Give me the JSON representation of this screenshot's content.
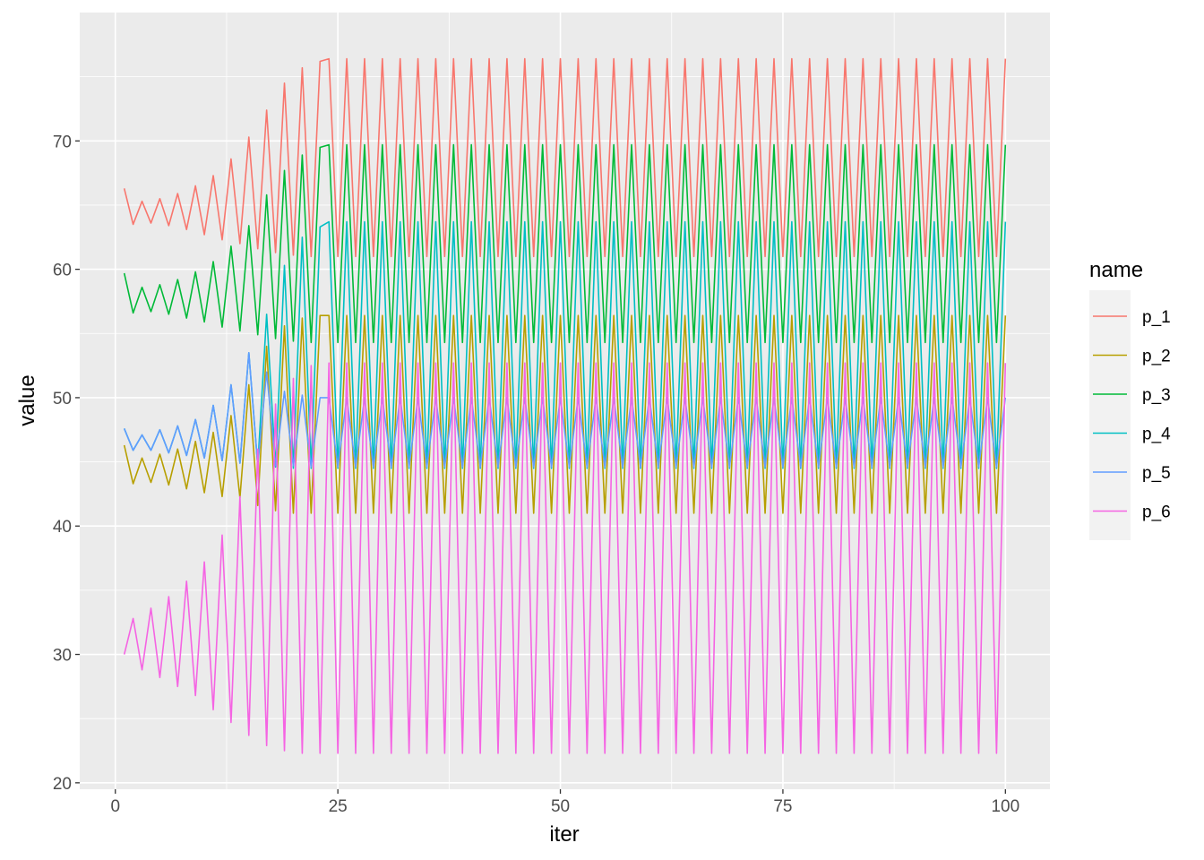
{
  "chart_data": {
    "type": "line",
    "xlabel": "iter",
    "ylabel": "value",
    "xlim": [
      -4,
      105
    ],
    "ylim": [
      19.5,
      80
    ],
    "x_ticks": [
      0,
      25,
      50,
      75,
      100
    ],
    "y_ticks": [
      20,
      30,
      40,
      50,
      60,
      70
    ],
    "grid": true,
    "legend": {
      "title": "name",
      "position": "right"
    },
    "x": {
      "start": 1,
      "end": 100,
      "step": 1
    },
    "series": [
      {
        "name": "p_1",
        "color": "#F8766D",
        "start": [
          66.3,
          63.5,
          65.3,
          63.6,
          65.5,
          63.4,
          65.9,
          63.1,
          66.5,
          62.7,
          67.3,
          62.3,
          68.6,
          62.0,
          70.3,
          61.6,
          72.4,
          61.3,
          74.5,
          61.1,
          75.7,
          61.0,
          76.2
        ],
        "steady": [
          76.4,
          61.0
        ]
      },
      {
        "name": "p_2",
        "color": "#B79F00",
        "start": [
          46.3,
          43.3,
          45.3,
          43.4,
          45.6,
          43.2,
          46.0,
          42.9,
          46.6,
          42.6,
          47.3,
          42.3,
          48.6,
          42.2,
          51.0,
          41.6,
          54.0,
          41.2,
          55.6,
          41.0,
          56.2,
          41.0,
          56.4
        ],
        "steady": [
          56.4,
          41.0
        ]
      },
      {
        "name": "p_3",
        "color": "#00BA38",
        "start": [
          59.7,
          56.6,
          58.6,
          56.7,
          58.8,
          56.5,
          59.2,
          56.2,
          59.8,
          55.9,
          60.6,
          55.5,
          61.8,
          55.2,
          63.4,
          54.9,
          65.8,
          54.6,
          67.7,
          54.4,
          68.9,
          54.3,
          69.5
        ],
        "steady": [
          69.7,
          54.3
        ]
      },
      {
        "name": "p_4",
        "color": "#00BFC4",
        "start": [
          47.6,
          45.9,
          47.1,
          45.9,
          47.5,
          45.7,
          47.8,
          45.5,
          48.3,
          45.3,
          49.4,
          45.1,
          51.0,
          44.9,
          53.5,
          44.7,
          56.5,
          44.6,
          60.3,
          44.5,
          62.5,
          44.5,
          63.3
        ],
        "steady": [
          63.7,
          44.5
        ]
      },
      {
        "name": "p_5",
        "color": "#619CFF",
        "start": [
          47.6,
          45.9,
          47.1,
          45.9,
          47.5,
          45.7,
          47.8,
          45.5,
          48.3,
          45.3,
          49.4,
          45.1,
          51.0,
          44.9,
          53.5,
          44.7,
          52.0,
          44.7,
          50.5,
          44.7,
          50.2,
          44.6,
          50.0
        ],
        "steady": [
          50.0,
          44.6
        ]
      },
      {
        "name": "p_6",
        "color": "#F564E3",
        "start": [
          30.0,
          32.8,
          28.8,
          33.6,
          28.2,
          34.5,
          27.5,
          35.7,
          26.8,
          37.2,
          25.7,
          39.3,
          24.7,
          42.3,
          23.7,
          46.0,
          22.9,
          49.5,
          22.5,
          51.5,
          22.3,
          52.5,
          22.3
        ],
        "steady": [
          52.7,
          22.3
        ]
      }
    ]
  }
}
